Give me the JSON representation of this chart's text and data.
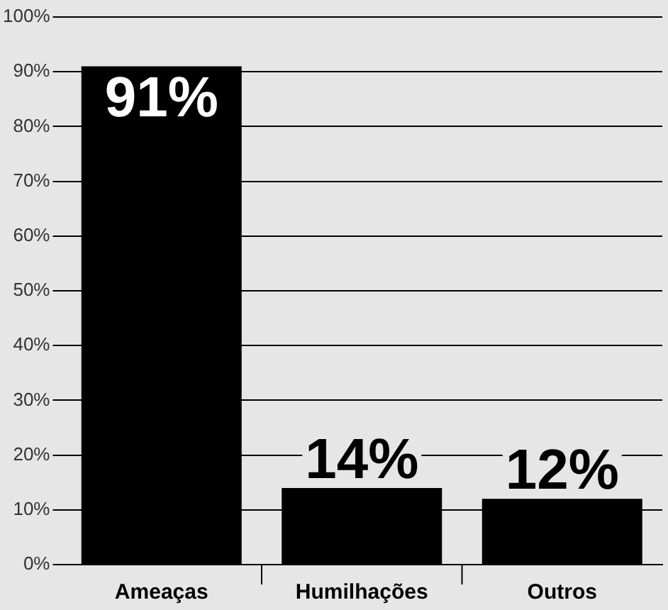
{
  "chart_data": {
    "type": "bar",
    "categories": [
      "Ameaças",
      "Humilhações",
      "Outros"
    ],
    "values": [
      91,
      14,
      12
    ],
    "color": "#000000",
    "value_labels": [
      "91%",
      "14%",
      "12%"
    ],
    "ylim": [
      0,
      100
    ],
    "yticks": [
      {
        "value": 0,
        "label": "0%"
      },
      {
        "value": 10,
        "label": "10%"
      },
      {
        "value": 20,
        "label": "20%"
      },
      {
        "value": 30,
        "label": "30%"
      },
      {
        "value": 40,
        "label": "40%"
      },
      {
        "value": 50,
        "label": "50%"
      },
      {
        "value": 60,
        "label": "60%"
      },
      {
        "value": 70,
        "label": "70%"
      },
      {
        "value": 80,
        "label": "80%"
      },
      {
        "value": 90,
        "label": "90%"
      },
      {
        "value": 100,
        "label": "100%"
      }
    ],
    "grid": "y",
    "legend": false
  }
}
